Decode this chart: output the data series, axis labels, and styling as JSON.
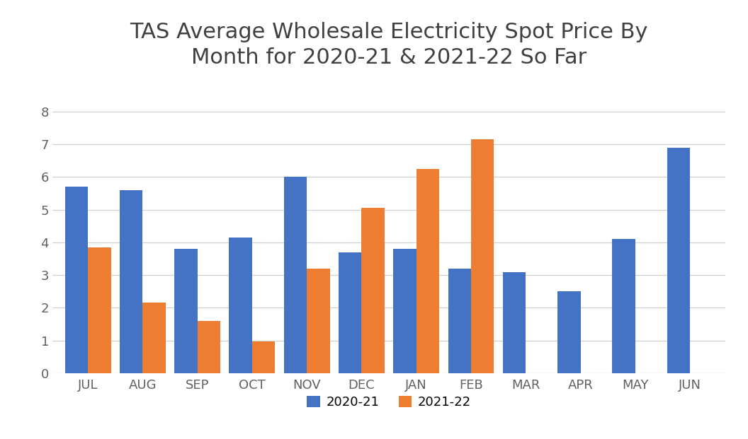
{
  "title": "TAS Average Wholesale Electricity Spot Price By\nMonth for 2020-21 & 2021-22 So Far",
  "months": [
    "JUL",
    "AUG",
    "SEP",
    "OCT",
    "NOV",
    "DEC",
    "JAN",
    "FEB",
    "MAR",
    "APR",
    "MAY",
    "JUN"
  ],
  "series_2020_21": [
    5.7,
    5.6,
    3.8,
    4.15,
    6.0,
    3.7,
    3.8,
    3.2,
    3.1,
    2.5,
    4.1,
    6.9
  ],
  "series_2021_22": [
    3.85,
    2.15,
    1.6,
    0.98,
    3.2,
    5.05,
    6.25,
    7.15,
    null,
    null,
    null,
    null
  ],
  "color_2020_21": "#4472C4",
  "color_2021_22": "#ED7D31",
  "legend_labels": [
    "2020-21",
    "2021-22"
  ],
  "ylim": [
    0,
    9
  ],
  "yticks": [
    0,
    1,
    2,
    3,
    4,
    5,
    6,
    7,
    8
  ],
  "background_color": "#FFFFFF",
  "title_fontsize": 22,
  "tick_fontsize": 13,
  "legend_fontsize": 13,
  "bar_width": 0.42,
  "grid_color": "#D0D0D0",
  "title_color": "#404040",
  "tick_color": "#606060"
}
